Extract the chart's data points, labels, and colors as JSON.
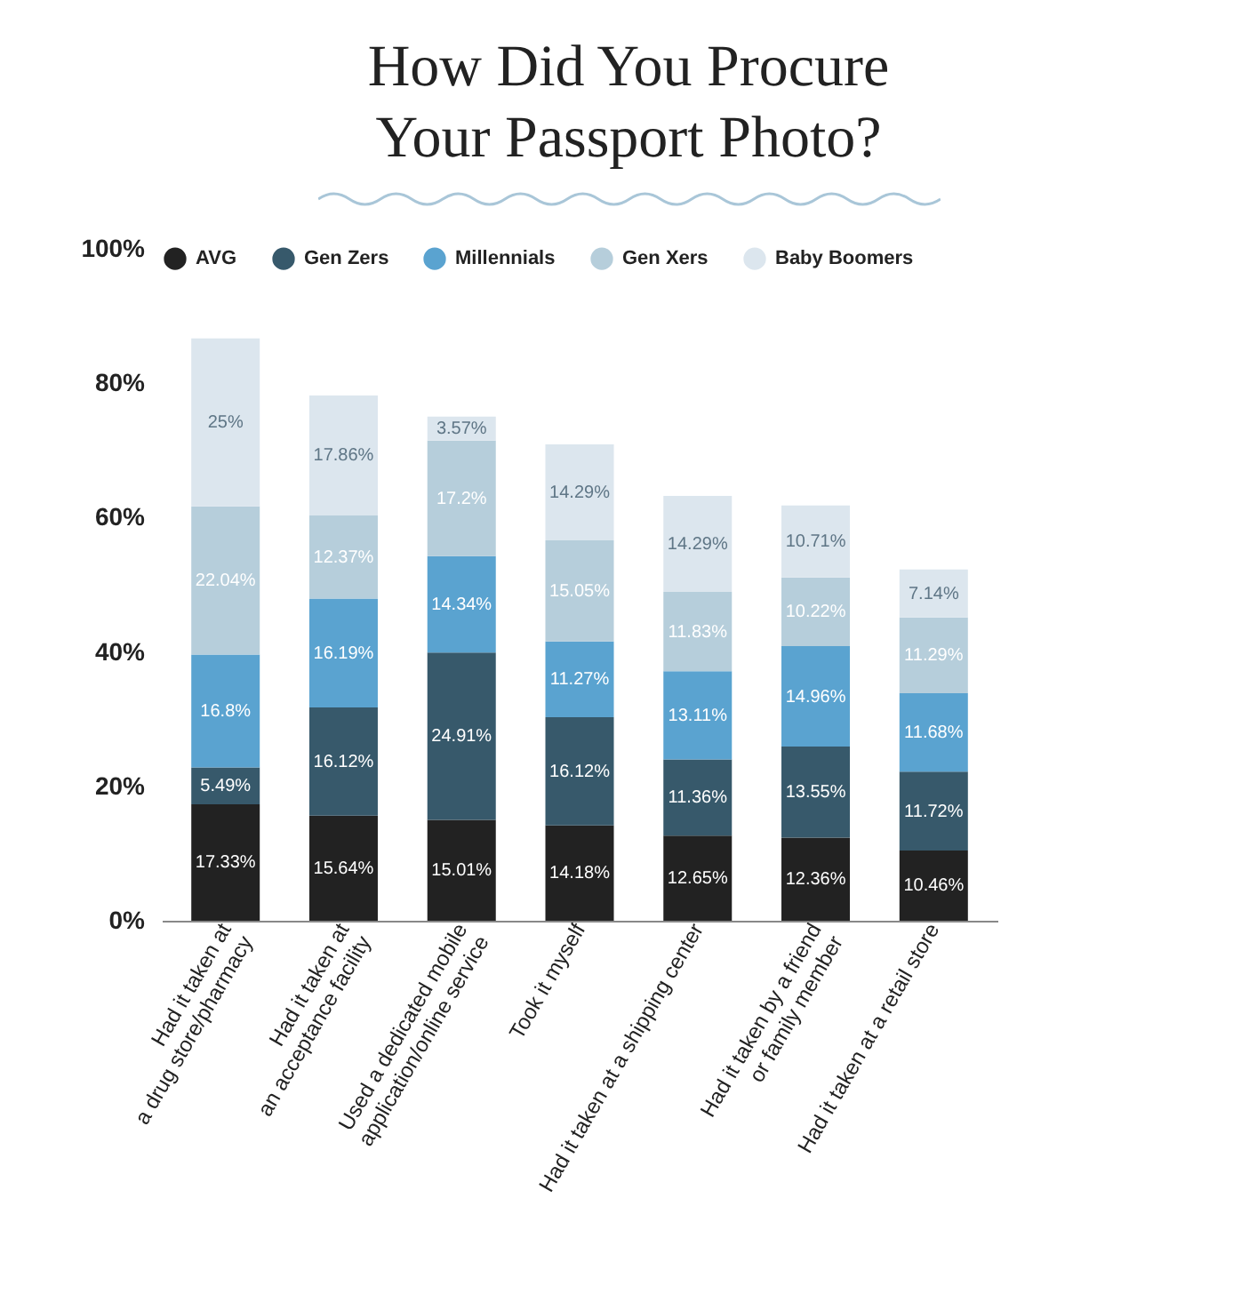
{
  "chart_data": {
    "type": "bar",
    "title": "How Did You Procure Your Passport Photo?",
    "stacked": true,
    "legend": "top",
    "categories": [
      "Had it taken at\na drug store/pharmacy",
      "Had it taken at\nan acceptance facility",
      "Used a dedicated mobile\napplication/online service",
      "Took it myself",
      "Had it taken at a shipping center",
      "Had it taken by a friend\nor family member",
      "Had it taken at a retail store"
    ],
    "ylim": [
      0,
      100
    ],
    "yticks": [
      {
        "value": 0,
        "label": "0%"
      },
      {
        "value": 20,
        "label": "20%"
      },
      {
        "value": 40,
        "label": "40%"
      },
      {
        "value": 60,
        "label": "60%"
      },
      {
        "value": 80,
        "label": "80%"
      },
      {
        "value": 100,
        "label": "100%"
      }
    ],
    "series": [
      {
        "name": "AVG",
        "color": "#222222",
        "values": [
          17.33,
          15.64,
          15.01,
          14.18,
          12.65,
          12.36,
          10.46
        ],
        "value_labels": [
          "17.33%",
          "15.64%",
          "15.01%",
          "14.18%",
          "12.65%",
          "12.36%",
          "10.46%"
        ]
      },
      {
        "name": "Gen Zers",
        "color": "#37596b",
        "values": [
          5.49,
          16.12,
          24.91,
          16.12,
          11.36,
          13.55,
          11.72
        ],
        "value_labels": [
          "5.49%",
          "16.12%",
          "24.91%",
          "16.12%",
          "11.36%",
          "13.55%",
          "11.72%"
        ]
      },
      {
        "name": "Millennials",
        "color": "#5aa3d0",
        "values": [
          16.8,
          16.19,
          14.34,
          11.27,
          13.11,
          14.96,
          11.68
        ],
        "value_labels": [
          "16.8%",
          "16.19%",
          "14.34%",
          "11.27%",
          "13.11%",
          "14.96%",
          "11.68%"
        ]
      },
      {
        "name": "Gen Xers",
        "color": "#b6cedb",
        "values": [
          22.04,
          12.37,
          17.2,
          15.05,
          11.83,
          10.22,
          11.29
        ],
        "value_labels": [
          "22.04%",
          "12.37%",
          "17.2%",
          "15.05%",
          "11.83%",
          "10.22%",
          "11.29%"
        ]
      },
      {
        "name": "Baby Boomers",
        "color": "#dce6ee",
        "values": [
          25,
          17.86,
          3.57,
          14.29,
          14.29,
          10.71,
          7.14
        ],
        "value_labels": [
          "25%",
          "17.86%",
          "3.57%",
          "14.29%",
          "14.29%",
          "10.71%",
          "7.14%"
        ]
      }
    ]
  }
}
